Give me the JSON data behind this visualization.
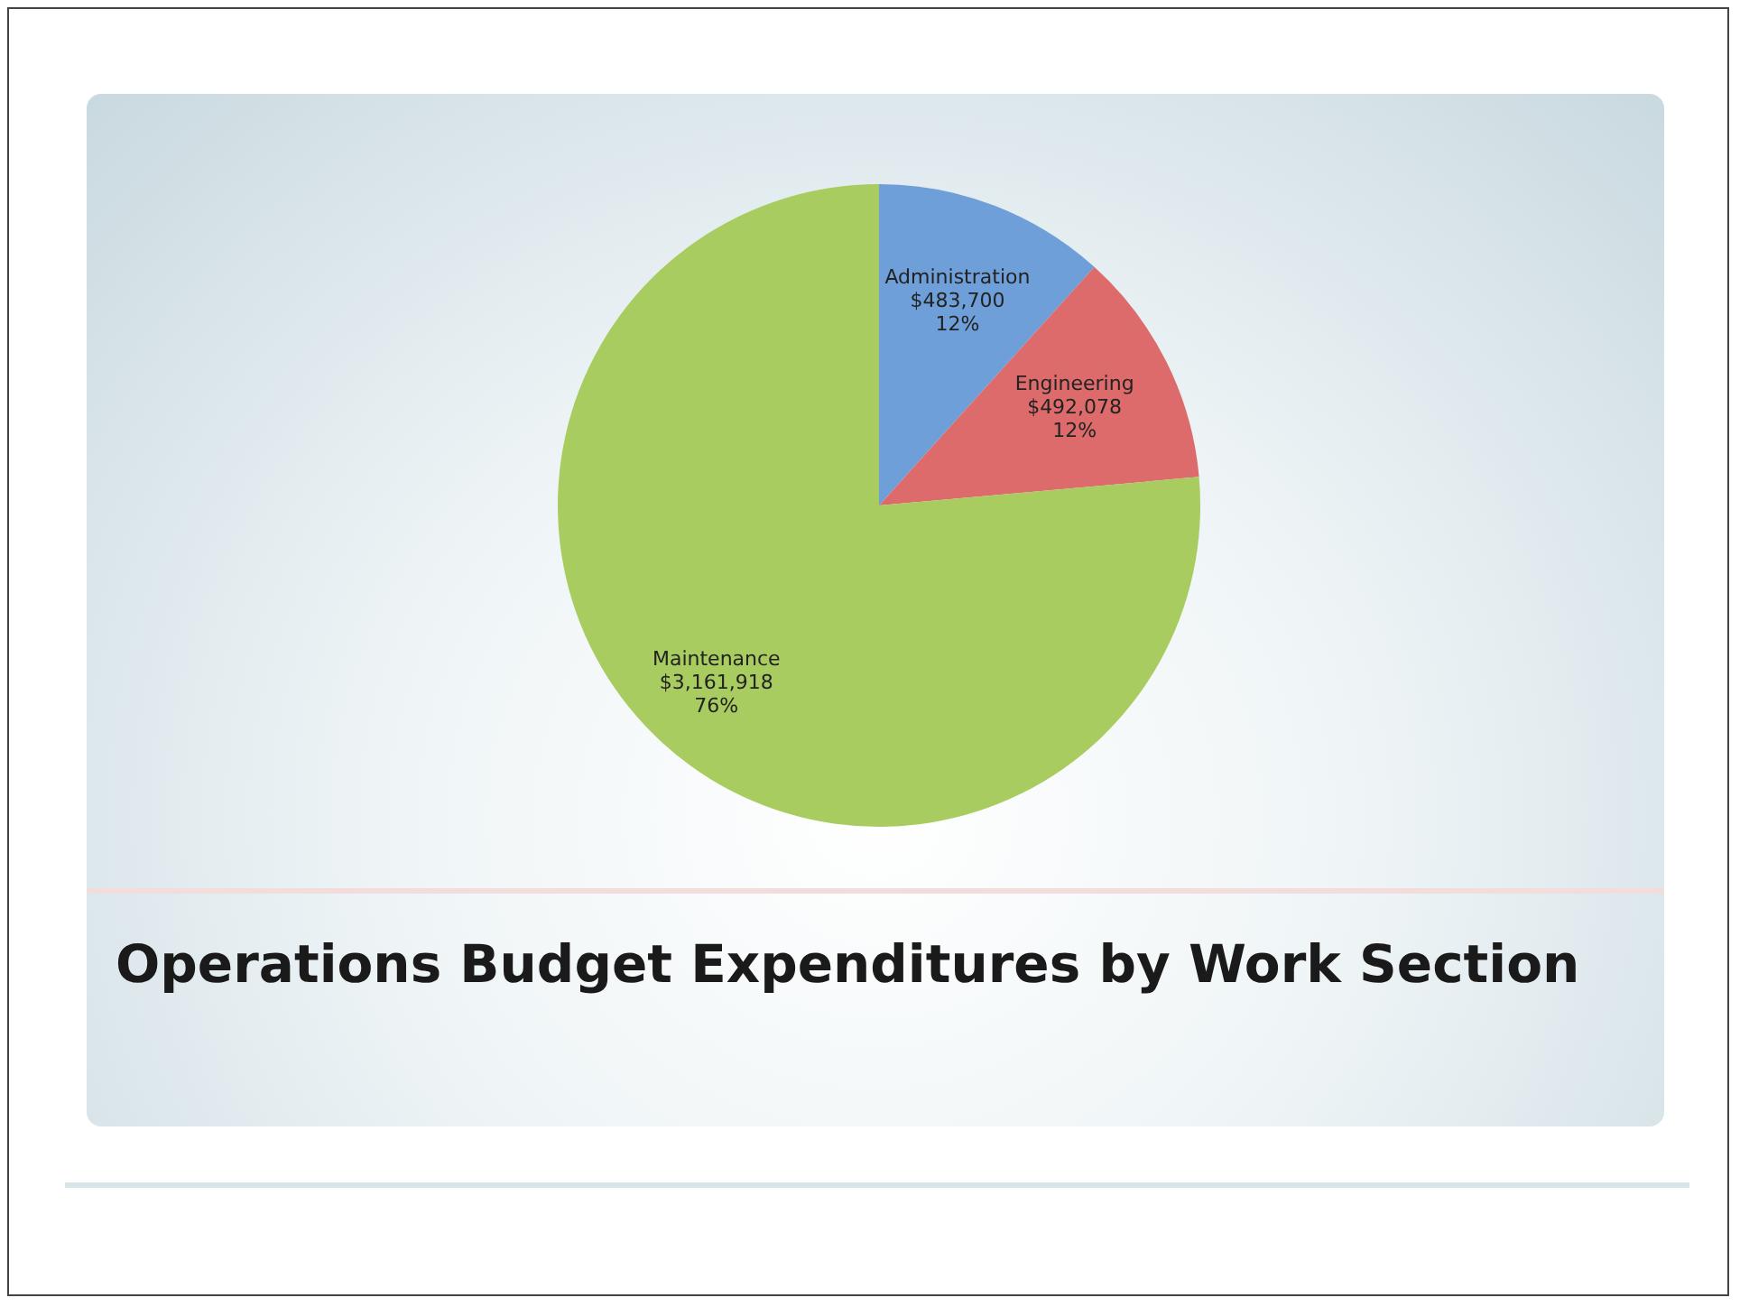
{
  "chart_data": {
    "type": "pie",
    "title": "Operations Budget Expenditures by Work Section",
    "categories": [
      "Administration",
      "Engineering",
      "Maintenance"
    ],
    "values": [
      483700,
      492078,
      3161918
    ],
    "colors": [
      "#6f9fd8",
      "#dd6b6b",
      "#a8cc5f"
    ],
    "value_labels": [
      "$483,700\n12%",
      "$492,078\n12%",
      "$3,161,918\n76%"
    ],
    "legend": false
  }
}
